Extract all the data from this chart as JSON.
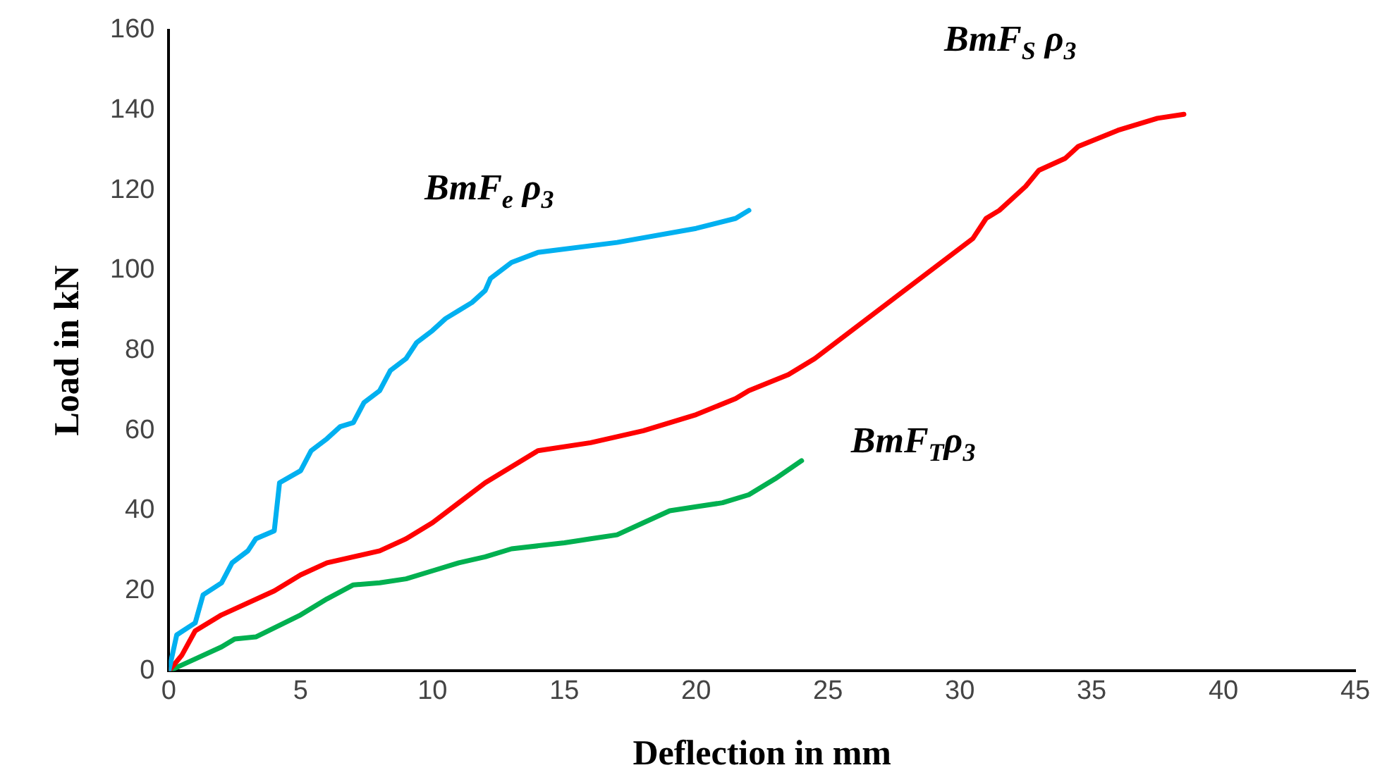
{
  "chart_data": {
    "type": "line",
    "xlabel": "Deflection in mm",
    "ylabel": "Load in kN",
    "xlim": [
      0,
      45
    ],
    "xticks": [
      0,
      5,
      10,
      15,
      20,
      25,
      30,
      35,
      40,
      45
    ],
    "ylim": [
      0,
      160
    ],
    "yticks": [
      0,
      20,
      40,
      60,
      80,
      100,
      120,
      140,
      160
    ],
    "grid": false,
    "legend": false,
    "series": [
      {
        "name": "BmF$_{e}$ ρ$_{3}$",
        "color": "#00b0f0",
        "x": [
          0,
          0.3,
          1,
          1.3,
          2,
          2.4,
          3,
          3.3,
          4,
          4.2,
          5,
          5.4,
          6,
          6.5,
          7,
          7.4,
          8,
          8.4,
          9,
          9.4,
          10,
          10.5,
          11,
          11.5,
          12,
          12.2,
          13,
          14,
          17,
          20,
          21.5,
          22
        ],
        "values": [
          0,
          9,
          12,
          19,
          22,
          27,
          30,
          33,
          35,
          47,
          50,
          55,
          58,
          61,
          62,
          67,
          70,
          75,
          78,
          82,
          85,
          88,
          90,
          92,
          95,
          98,
          102,
          104.5,
          107,
          110.5,
          113,
          115
        ]
      },
      {
        "name": "BmF$_{S}$ ρ$_{3}$",
        "color": "#ff0000",
        "x": [
          0,
          0.5,
          1,
          2,
          4,
          5,
          6,
          8,
          9,
          10,
          11,
          12,
          13,
          14,
          16,
          18,
          20,
          21.5,
          22,
          23.5,
          24.5,
          30.5,
          31,
          31.5,
          32.5,
          33,
          34,
          34.5,
          36,
          37.5,
          38.5
        ],
        "values": [
          0,
          4,
          10,
          14,
          20,
          24,
          27,
          30,
          33,
          37,
          42,
          47,
          51,
          55,
          57,
          60,
          64,
          68,
          70,
          74,
          78,
          108,
          113,
          115,
          121,
          125,
          128,
          131,
          135,
          138,
          139
        ]
      },
      {
        "name": "BmF$_{T}$ρ$_{3}$",
        "color": "#00b050",
        "x": [
          0,
          1,
          2,
          2.5,
          3.3,
          5,
          6,
          7,
          8,
          9,
          10,
          11,
          12,
          13,
          15,
          16,
          17,
          18,
          19,
          20,
          21,
          22,
          23,
          24
        ],
        "values": [
          0,
          3,
          6,
          8,
          8.5,
          14,
          18,
          21.5,
          22,
          23,
          25,
          27,
          28.5,
          30.5,
          32,
          33,
          34,
          37,
          40,
          41,
          42,
          44,
          48,
          52.5
        ]
      }
    ]
  }
}
